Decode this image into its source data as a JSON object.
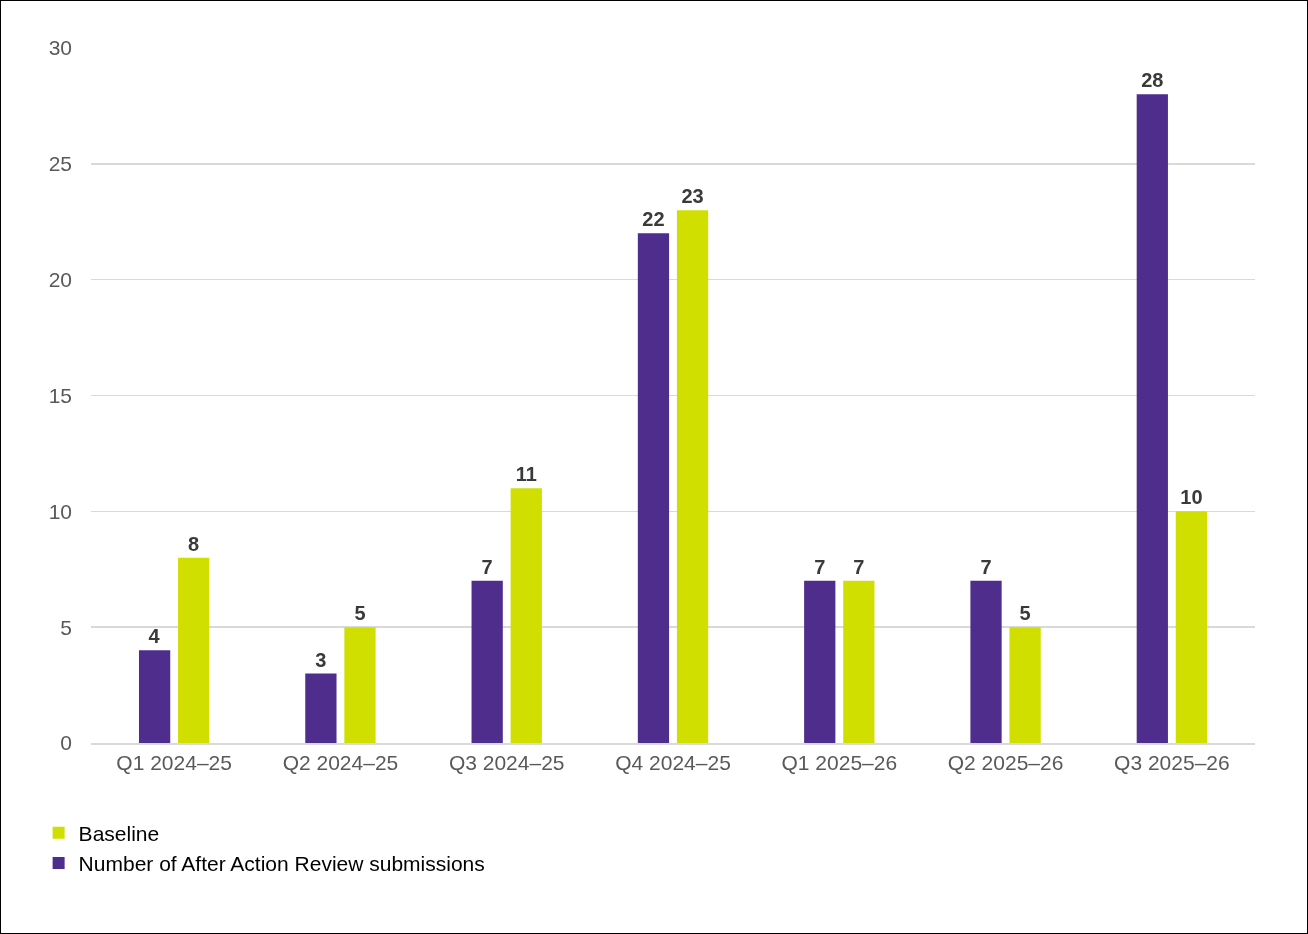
{
  "chart_data": {
    "type": "bar",
    "categories": [
      "Q1 2024–25",
      "Q2 2024–25",
      "Q3 2024–25",
      "Q4 2024–25",
      "Q1 2025–26",
      "Q2 2025–26",
      "Q3 2025–26"
    ],
    "series": [
      {
        "name": "Number of After Action Review submissions",
        "color": "#4f2d8c",
        "values": [
          4,
          3,
          7,
          22,
          7,
          7,
          28
        ]
      },
      {
        "name": "Baseline",
        "color": "#d0df00",
        "values": [
          8,
          5,
          11,
          23,
          7,
          5,
          10
        ]
      }
    ],
    "ylim": [
      0,
      30
    ],
    "yticks": [
      0,
      5,
      10,
      15,
      20,
      25,
      30
    ],
    "grid": "y",
    "legend": "bottom left",
    "data_labels": true
  }
}
